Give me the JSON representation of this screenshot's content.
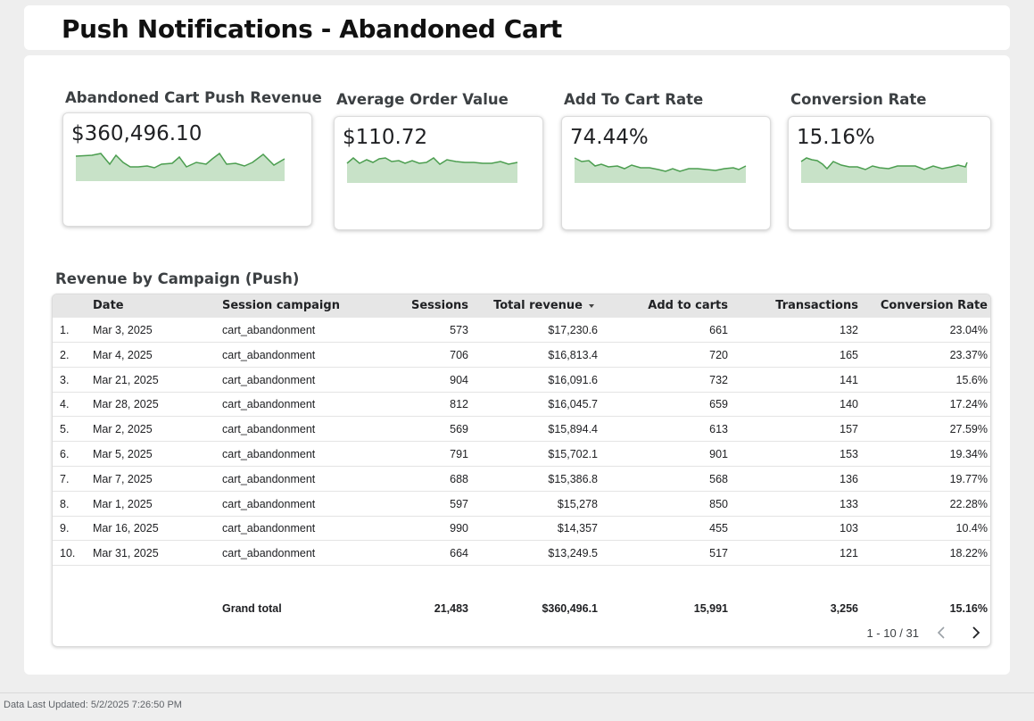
{
  "header": {
    "title": "Push Notifications - Abandoned Cart"
  },
  "kpis": [
    {
      "label": "Abandoned Cart Push Revenue",
      "value": "$360,496.10"
    },
    {
      "label": "Average Order Value",
      "value": "$110.72"
    },
    {
      "label": "Add To Cart Rate",
      "value": "74.44%"
    },
    {
      "label": "Conversion Rate",
      "value": "15.16%"
    }
  ],
  "colors": {
    "spark_line": "#4c9e50",
    "spark_fill": "#c8e2c8",
    "header_bg": "#e6e6e6"
  },
  "table": {
    "title": "Revenue by Campaign (Push)",
    "columns": [
      "Date",
      "Session campaign",
      "Sessions",
      "Total revenue",
      "Add to carts",
      "Transactions",
      "Conversion Rate"
    ],
    "sort_column": "Total revenue",
    "rows": [
      {
        "n": "1.",
        "date": "Mar 3, 2025",
        "campaign": "cart_abandonment",
        "sessions": "573",
        "revenue": "$17,230.6",
        "atc": "661",
        "tx": "132",
        "cr": "23.04%"
      },
      {
        "n": "2.",
        "date": "Mar 4, 2025",
        "campaign": "cart_abandonment",
        "sessions": "706",
        "revenue": "$16,813.4",
        "atc": "720",
        "tx": "165",
        "cr": "23.37%"
      },
      {
        "n": "3.",
        "date": "Mar 21, 2025",
        "campaign": "cart_abandonment",
        "sessions": "904",
        "revenue": "$16,091.6",
        "atc": "732",
        "tx": "141",
        "cr": "15.6%"
      },
      {
        "n": "4.",
        "date": "Mar 28, 2025",
        "campaign": "cart_abandonment",
        "sessions": "812",
        "revenue": "$16,045.7",
        "atc": "659",
        "tx": "140",
        "cr": "17.24%"
      },
      {
        "n": "5.",
        "date": "Mar 2, 2025",
        "campaign": "cart_abandonment",
        "sessions": "569",
        "revenue": "$15,894.4",
        "atc": "613",
        "tx": "157",
        "cr": "27.59%"
      },
      {
        "n": "6.",
        "date": "Mar 5, 2025",
        "campaign": "cart_abandonment",
        "sessions": "791",
        "revenue": "$15,702.1",
        "atc": "901",
        "tx": "153",
        "cr": "19.34%"
      },
      {
        "n": "7.",
        "date": "Mar 7, 2025",
        "campaign": "cart_abandonment",
        "sessions": "688",
        "revenue": "$15,386.8",
        "atc": "568",
        "tx": "136",
        "cr": "19.77%"
      },
      {
        "n": "8.",
        "date": "Mar 1, 2025",
        "campaign": "cart_abandonment",
        "sessions": "597",
        "revenue": "$15,278",
        "atc": "850",
        "tx": "133",
        "cr": "22.28%"
      },
      {
        "n": "9.",
        "date": "Mar 16, 2025",
        "campaign": "cart_abandonment",
        "sessions": "990",
        "revenue": "$14,357",
        "atc": "455",
        "tx": "103",
        "cr": "10.4%"
      },
      {
        "n": "10.",
        "date": "Mar 31, 2025",
        "campaign": "cart_abandonment",
        "sessions": "664",
        "revenue": "$13,249.5",
        "atc": "517",
        "tx": "121",
        "cr": "18.22%"
      }
    ],
    "total": {
      "label": "Grand total",
      "sessions": "21,483",
      "revenue": "$360,496.1",
      "atc": "15,991",
      "tx": "3,256",
      "cr": "15.16%"
    },
    "pagination": {
      "text": "1 - 10 / 31"
    }
  },
  "footer": {
    "text": "Data Last Updated: 5/2/2025 7:26:50 PM"
  }
}
